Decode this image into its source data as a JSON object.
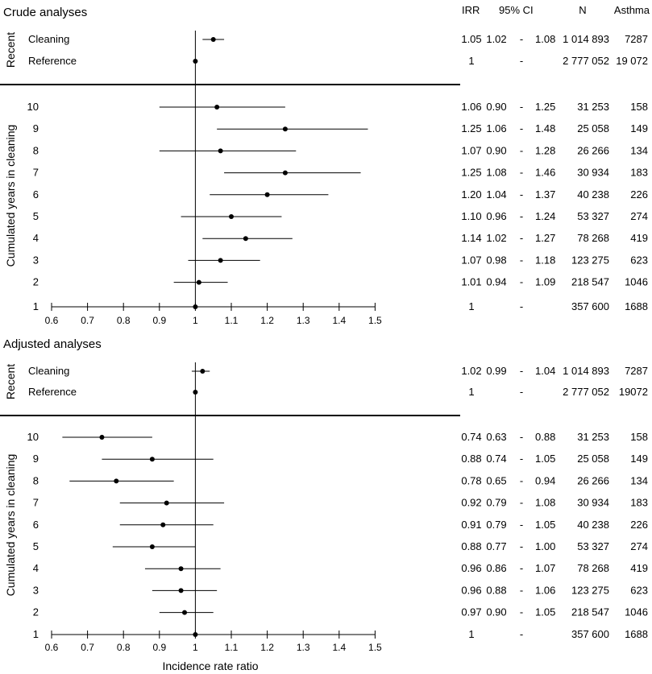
{
  "headers": {
    "irr": "IRR",
    "ci": "95% CI",
    "n": "N",
    "asthma": "Asthma"
  },
  "xlabel": "Incidence rate ratio",
  "chart_data": [
    {
      "type": "forest",
      "title": "Crude analyses",
      "xlim": [
        0.6,
        1.5
      ],
      "xticks": [
        "0.6",
        "0.7",
        "0.8",
        "0.9",
        "1",
        "1.1",
        "1.2",
        "1.3",
        "1.4",
        "1.5"
      ],
      "reference_line": 1,
      "top_group_label": "Recent",
      "bottom_group_label": "Cumulated years in cleaning",
      "recent_rows": [
        {
          "label": "Cleaning",
          "irr": 1.05,
          "lo": 1.02,
          "hi": 1.08,
          "irr_text": "1.05",
          "ci_lo_text": "1.02",
          "ci_hi_text": "1.08",
          "n": "1 014 893",
          "asthma": "7287"
        },
        {
          "label": "Reference",
          "irr": 1,
          "lo": null,
          "hi": null,
          "irr_text": "1",
          "ci_text": "-",
          "n": "2 777 052",
          "asthma": "19 072"
        }
      ],
      "cumulated_rows": [
        {
          "label": "10",
          "irr": 1.06,
          "lo": 0.9,
          "hi": 1.25,
          "irr_text": "1.06",
          "ci_lo_text": "0.90",
          "ci_hi_text": "1.25",
          "n": "31 253",
          "asthma": "158"
        },
        {
          "label": "9",
          "irr": 1.25,
          "lo": 1.06,
          "hi": 1.48,
          "irr_text": "1.25",
          "ci_lo_text": "1.06",
          "ci_hi_text": "1.48",
          "n": "25 058",
          "asthma": "149"
        },
        {
          "label": "8",
          "irr": 1.07,
          "lo": 0.9,
          "hi": 1.28,
          "irr_text": "1.07",
          "ci_lo_text": "0.90",
          "ci_hi_text": "1.28",
          "n": "26 266",
          "asthma": "134"
        },
        {
          "label": "7",
          "irr": 1.25,
          "lo": 1.08,
          "hi": 1.46,
          "irr_text": "1.25",
          "ci_lo_text": "1.08",
          "ci_hi_text": "1.46",
          "n": "30 934",
          "asthma": "183"
        },
        {
          "label": "6",
          "irr": 1.2,
          "lo": 1.04,
          "hi": 1.37,
          "irr_text": "1.20",
          "ci_lo_text": "1.04",
          "ci_hi_text": "1.37",
          "n": "40 238",
          "asthma": "226"
        },
        {
          "label": "5",
          "irr": 1.1,
          "lo": 0.96,
          "hi": 1.24,
          "irr_text": "1.10",
          "ci_lo_text": "0.96",
          "ci_hi_text": "1.24",
          "n": "53 327",
          "asthma": "274"
        },
        {
          "label": "4",
          "irr": 1.14,
          "lo": 1.02,
          "hi": 1.27,
          "irr_text": "1.14",
          "ci_lo_text": "1.02",
          "ci_hi_text": "1.27",
          "n": "78 268",
          "asthma": "419"
        },
        {
          "label": "3",
          "irr": 1.07,
          "lo": 0.98,
          "hi": 1.18,
          "irr_text": "1.07",
          "ci_lo_text": "0.98",
          "ci_hi_text": "1.18",
          "n": "123 275",
          "asthma": "623"
        },
        {
          "label": "2",
          "irr": 1.01,
          "lo": 0.94,
          "hi": 1.09,
          "irr_text": "1.01",
          "ci_lo_text": "0.94",
          "ci_hi_text": "1.09",
          "n": "218 547",
          "asthma": "1046"
        },
        {
          "label": "1",
          "irr": 1,
          "lo": null,
          "hi": null,
          "irr_text": "1",
          "ci_text": "-",
          "n": "357 600",
          "asthma": "1688"
        }
      ]
    },
    {
      "type": "forest",
      "title": "Adjusted analyses",
      "xlim": [
        0.6,
        1.5
      ],
      "xticks": [
        "0.6",
        "0.7",
        "0.8",
        "0.9",
        "1",
        "1.1",
        "1.2",
        "1.3",
        "1.4",
        "1.5"
      ],
      "reference_line": 1,
      "top_group_label": "Recent",
      "bottom_group_label": "Cumulated years in cleaning",
      "recent_rows": [
        {
          "label": "Cleaning",
          "irr": 1.02,
          "lo": 0.99,
          "hi": 1.04,
          "irr_text": "1.02",
          "ci_lo_text": "0.99",
          "ci_hi_text": "1.04",
          "n": "1 014 893",
          "asthma": "7287"
        },
        {
          "label": "Reference",
          "irr": 1,
          "lo": null,
          "hi": null,
          "irr_text": "1",
          "ci_text": "-",
          "n": "2 777 052",
          "asthma": "19072"
        }
      ],
      "cumulated_rows": [
        {
          "label": "10",
          "irr": 0.74,
          "lo": 0.63,
          "hi": 0.88,
          "irr_text": "0.74",
          "ci_lo_text": "0.63",
          "ci_hi_text": "0.88",
          "n": "31 253",
          "asthma": "158"
        },
        {
          "label": "9",
          "irr": 0.88,
          "lo": 0.74,
          "hi": 1.05,
          "irr_text": "0.88",
          "ci_lo_text": "0.74",
          "ci_hi_text": "1.05",
          "n": "25 058",
          "asthma": "149"
        },
        {
          "label": "8",
          "irr": 0.78,
          "lo": 0.65,
          "hi": 0.94,
          "irr_text": "0.78",
          "ci_lo_text": "0.65",
          "ci_hi_text": "0.94",
          "n": "26 266",
          "asthma": "134"
        },
        {
          "label": "7",
          "irr": 0.92,
          "lo": 0.79,
          "hi": 1.08,
          "irr_text": "0.92",
          "ci_lo_text": "0.79",
          "ci_hi_text": "1.08",
          "n": "30 934",
          "asthma": "183"
        },
        {
          "label": "6",
          "irr": 0.91,
          "lo": 0.79,
          "hi": 1.05,
          "irr_text": "0.91",
          "ci_lo_text": "0.79",
          "ci_hi_text": "1.05",
          "n": "40 238",
          "asthma": "226"
        },
        {
          "label": "5",
          "irr": 0.88,
          "lo": 0.77,
          "hi": 1.0,
          "irr_text": "0.88",
          "ci_lo_text": "0.77",
          "ci_hi_text": "1.00",
          "n": "53 327",
          "asthma": "274"
        },
        {
          "label": "4",
          "irr": 0.96,
          "lo": 0.86,
          "hi": 1.07,
          "irr_text": "0.96",
          "ci_lo_text": "0.86",
          "ci_hi_text": "1.07",
          "n": "78 268",
          "asthma": "419"
        },
        {
          "label": "3",
          "irr": 0.96,
          "lo": 0.88,
          "hi": 1.06,
          "irr_text": "0.96",
          "ci_lo_text": "0.88",
          "ci_hi_text": "1.06",
          "n": "123 275",
          "asthma": "623"
        },
        {
          "label": "2",
          "irr": 0.97,
          "lo": 0.9,
          "hi": 1.05,
          "irr_text": "0.97",
          "ci_lo_text": "0.90",
          "ci_hi_text": "1.05",
          "n": "218 547",
          "asthma": "1046"
        },
        {
          "label": "1",
          "irr": 1,
          "lo": null,
          "hi": null,
          "irr_text": "1",
          "ci_text": "-",
          "n": "357 600",
          "asthma": "1688"
        }
      ]
    }
  ]
}
